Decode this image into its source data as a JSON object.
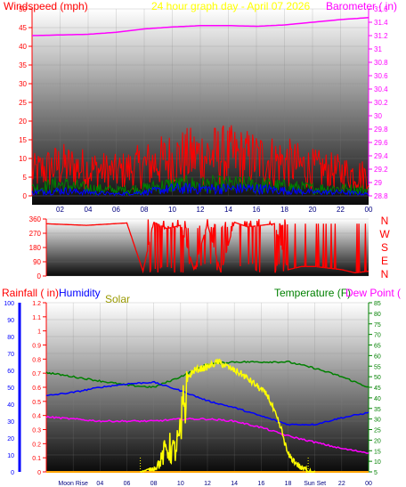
{
  "header": {
    "windspeed_label": "Windspeed (mph)",
    "title": "24 hour graph day - April 07 2026",
    "barometer_label": "Barometer ( in)"
  },
  "colors": {
    "wind": "#ff0000",
    "gust_dark": "#008000",
    "avg_wind": "#0000ff",
    "barometer": "#ff00ff",
    "direction": "#ff0000",
    "humidity": "#0000ff",
    "solar": "#ffff00",
    "temperature": "#008000",
    "dew_point": "#ff00ff",
    "rain": "#ffa500"
  },
  "chart_data": [
    {
      "type": "line",
      "panel": "wind-barometer",
      "ylabel": "Windspeed (mph)",
      "y2label": "Barometer ( in)",
      "ylim": [
        0,
        50
      ],
      "y2lim": [
        28.8,
        31.6
      ],
      "yticks": [
        "0",
        "5",
        "10",
        "15",
        "20",
        "25",
        "30",
        "35",
        "40",
        "45",
        "50"
      ],
      "y2ticks": [
        "28.8",
        "29",
        "29.2",
        "29.4",
        "29.6",
        "29.8",
        "30",
        "30.2",
        "30.4",
        "30.6",
        "30.8",
        "31",
        "31.2",
        "31.4",
        "31.6"
      ],
      "xticks": [
        "02",
        "04",
        "06",
        "08",
        "10",
        "12",
        "14",
        "16",
        "18",
        "20",
        "22",
        "00"
      ],
      "series": [
        {
          "key": "barometer",
          "x": [
            0,
            2,
            4,
            6,
            8,
            10,
            12,
            14,
            16,
            18,
            20,
            22,
            24
          ],
          "values": [
            31.2,
            31.21,
            31.22,
            31.25,
            31.3,
            31.33,
            31.35,
            31.35,
            31.34,
            31.36,
            31.4,
            31.44,
            31.47
          ]
        },
        {
          "key": "wind_gust",
          "x": [
            0,
            2,
            4,
            6,
            8,
            10,
            12,
            14,
            16,
            18,
            20,
            22,
            24
          ],
          "values": [
            7,
            9,
            8,
            7,
            9,
            11,
            12,
            12,
            11,
            10,
            8,
            7,
            6
          ]
        },
        {
          "key": "wind_mid",
          "x": [
            0,
            2,
            4,
            6,
            8,
            10,
            12,
            14,
            16,
            18,
            20,
            22,
            24
          ],
          "values": [
            2,
            3,
            2,
            1.5,
            2,
            3,
            3,
            3,
            3,
            2.5,
            2,
            2,
            1.5
          ]
        },
        {
          "key": "wind_avg",
          "x": [
            0,
            2,
            4,
            6,
            8,
            10,
            12,
            14,
            16,
            18,
            20,
            22,
            24
          ],
          "values": [
            1,
            1.5,
            1,
            0.5,
            1,
            2,
            2,
            2,
            2,
            1.5,
            1,
            1,
            0.5
          ]
        }
      ]
    },
    {
      "type": "scatter",
      "panel": "wind-direction",
      "ylim": [
        0,
        360
      ],
      "yticks": [
        "0",
        "90",
        "180",
        "270",
        "360"
      ],
      "compass_labels": [
        "N",
        "W",
        "S",
        "E",
        "N"
      ],
      "series": [
        {
          "key": "direction",
          "x": [
            0,
            3,
            6,
            7.2,
            8,
            9,
            10,
            11,
            12,
            13,
            14,
            15,
            16,
            17,
            18,
            19,
            20,
            21,
            22,
            23,
            24
          ],
          "values": [
            330,
            320,
            335,
            30,
            340,
            300,
            320,
            40,
            330,
            20,
            340,
            310,
            320,
            330,
            40,
            60,
            60,
            50,
            40,
            20,
            30
          ]
        }
      ]
    },
    {
      "type": "line",
      "panel": "rain-humidity-solar-temperature",
      "labels": {
        "rainfall": "Rainfall ( in)",
        "humidity": "Humidity",
        "solar": "Solar",
        "temperature": "Temperature (F)",
        "dew_point": "Dew Point ("
      },
      "rain_ticks": [
        "0",
        "0.1",
        "0.2",
        "0.3",
        "0.4",
        "0.5",
        "0.6",
        "0.7",
        "0.8",
        "0.9",
        "1",
        "1.1",
        "1.2"
      ],
      "humidity_ticks": [
        "0",
        "10",
        "20",
        "30",
        "40",
        "50",
        "60",
        "70",
        "80",
        "90",
        "100"
      ],
      "temp_ticks": [
        "5",
        "10",
        "15",
        "20",
        "25",
        "30",
        "35",
        "40",
        "45",
        "50",
        "55",
        "60",
        "65",
        "70",
        "75",
        "80",
        "85"
      ],
      "xticks": [
        "Moon Rise",
        "04",
        "06",
        "08",
        "10",
        "12",
        "14",
        "16",
        "18",
        "Sun Set",
        "22",
        "00"
      ],
      "temp_lim": [
        5,
        85
      ],
      "series": [
        {
          "key": "temperature",
          "x": [
            0,
            2,
            4,
            6,
            8,
            10,
            12,
            14,
            16,
            18,
            20,
            22,
            24
          ],
          "values": [
            52,
            50,
            48,
            46,
            45,
            50,
            56,
            57,
            57,
            57,
            54,
            50,
            45
          ]
        },
        {
          "key": "humidity",
          "x": [
            0,
            2,
            4,
            6,
            8,
            10,
            12,
            14,
            16,
            18,
            20,
            22,
            24
          ],
          "values": [
            45,
            47,
            50,
            52,
            53,
            48,
            42,
            38,
            33,
            28,
            28,
            32,
            35
          ]
        },
        {
          "key": "dew_point",
          "x": [
            0,
            2,
            4,
            6,
            8,
            10,
            12,
            14,
            16,
            18,
            20,
            22,
            24
          ],
          "values": [
            31,
            30,
            29,
            29,
            29,
            30,
            30,
            29,
            26,
            22,
            19,
            16,
            14
          ]
        },
        {
          "key": "solar",
          "x": [
            7,
            8,
            8.5,
            9,
            9.5,
            10,
            10.5,
            11,
            12,
            12.8,
            13.5,
            14.5,
            15.5,
            16.5,
            17,
            17.5,
            18,
            19,
            20
          ],
          "values": [
            0,
            2,
            6,
            15,
            12,
            20,
            55,
            60,
            62,
            65,
            62,
            58,
            52,
            45,
            35,
            25,
            10,
            2,
            0
          ]
        },
        {
          "key": "rain",
          "x": [
            0,
            24
          ],
          "values": [
            0,
            0
          ]
        }
      ]
    }
  ]
}
